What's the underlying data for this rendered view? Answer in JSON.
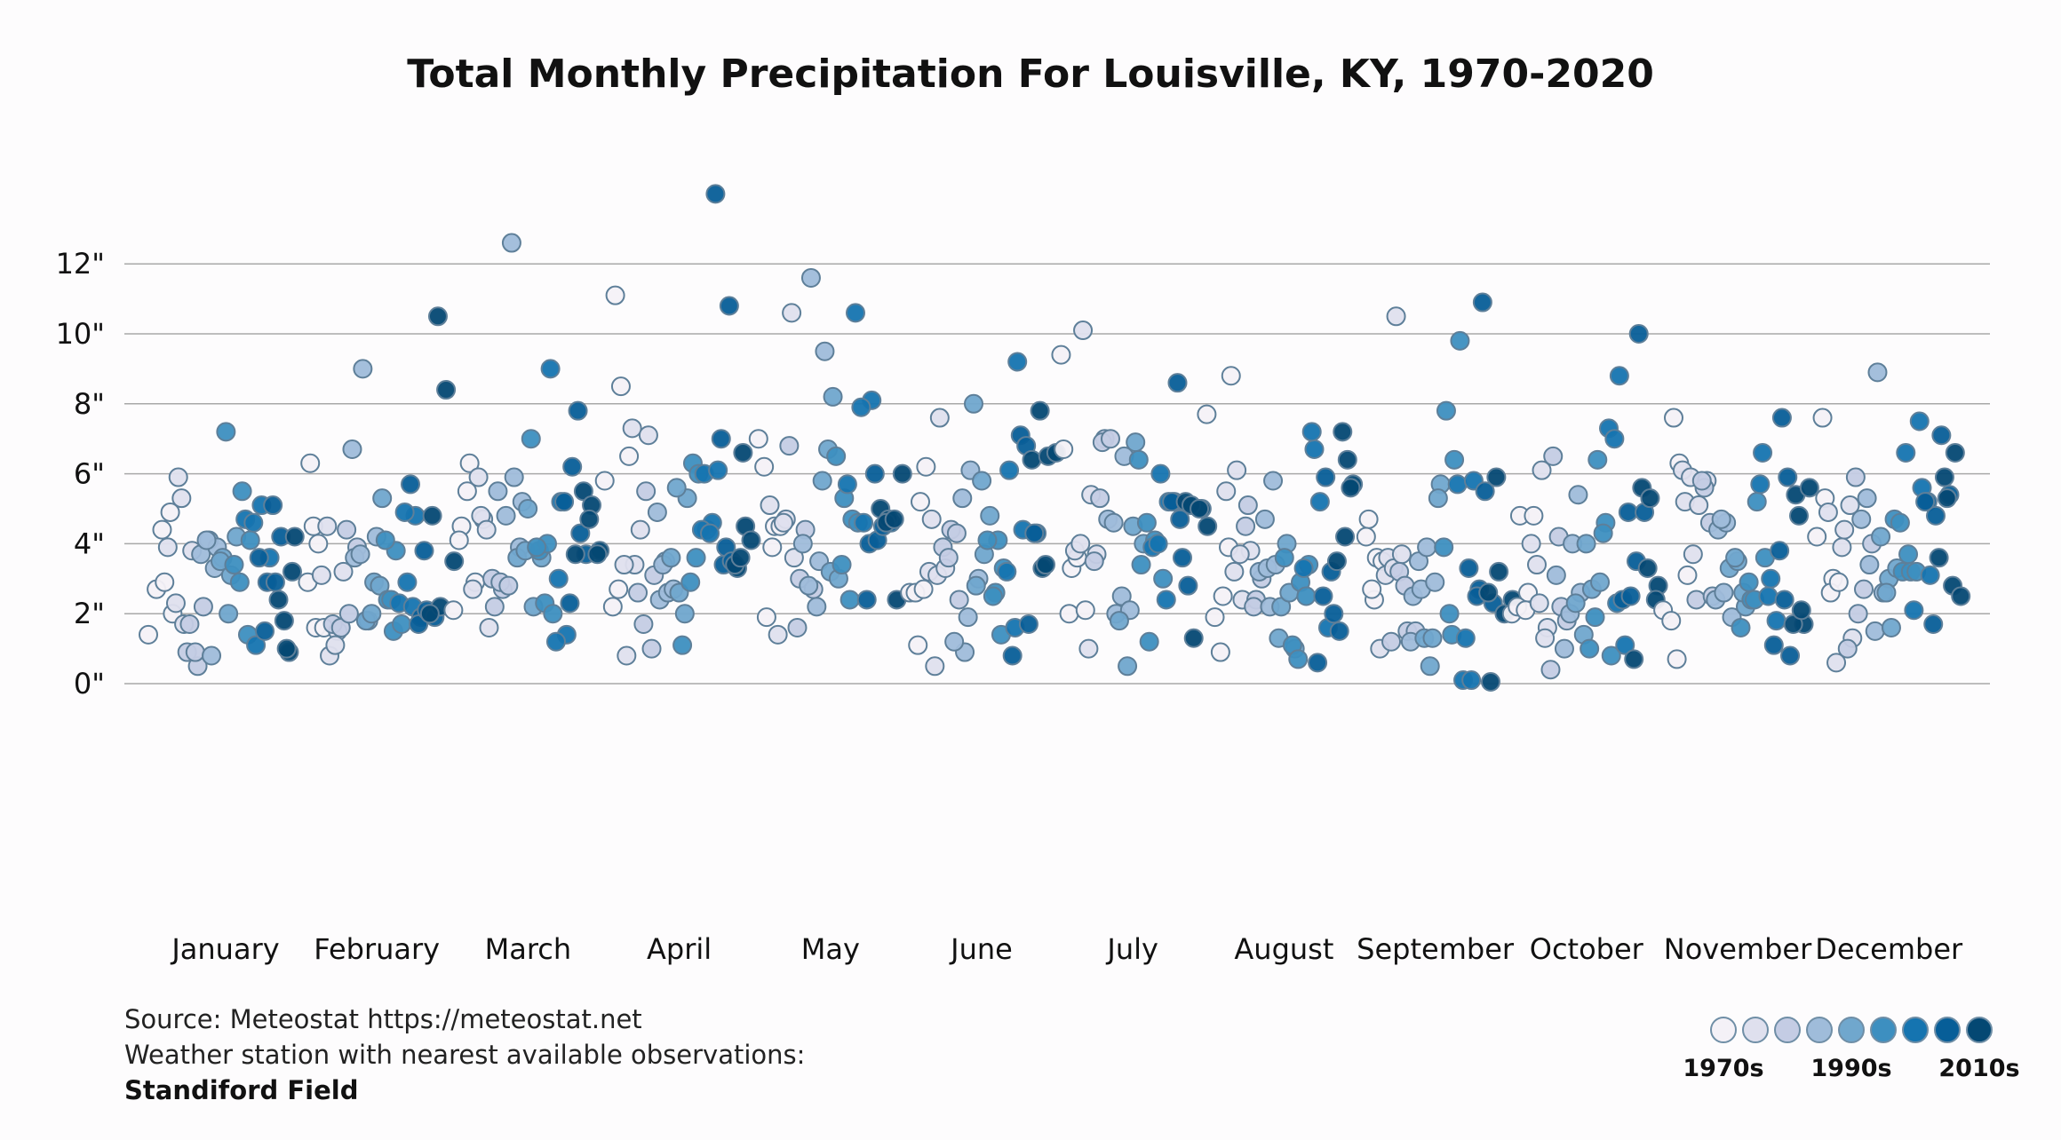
{
  "chart_data": {
    "type": "scatter",
    "title": "Total Monthly Precipitation For Louisville, KY, 1970-2020",
    "ylabel": "",
    "xlabel": "",
    "ylim": [
      0,
      14
    ],
    "y_ticks": [
      "0\"",
      "2\"",
      "4\"",
      "6\"",
      "8\"",
      "10\"",
      "12\""
    ],
    "y_tick_values": [
      0,
      2,
      4,
      6,
      8,
      10,
      12
    ],
    "grid": "horizontal",
    "year_start": 1970,
    "year_end": 2020,
    "categories": [
      "January",
      "February",
      "March",
      "April",
      "May",
      "June",
      "July",
      "August",
      "September",
      "October",
      "November",
      "December"
    ],
    "series": [
      {
        "values": [
          1.4,
          2.7,
          2.9,
          2.0,
          4.4,
          4.9,
          5.9,
          3.9,
          2.3,
          1.7,
          3.8,
          5.3,
          1.7,
          0.5,
          0.9,
          0.9,
          2.2,
          0.8,
          3.7,
          4.1,
          3.9,
          4.1,
          3.3,
          3.6,
          3.1,
          3.5,
          2.0,
          4.2,
          7.2,
          3.4,
          5.5,
          4.1,
          2.9,
          1.4,
          1.1,
          4.7,
          4.6,
          5.1,
          3.6,
          3.6,
          2.9,
          2.9,
          1.5,
          5.1,
          4.2,
          0.9,
          2.4,
          1.0,
          4.2,
          1.8,
          3.2
        ]
      },
      {
        "values": [
          6.3,
          4.0,
          2.9,
          1.6,
          1.6,
          4.5,
          3.1,
          0.8,
          1.5,
          4.5,
          1.1,
          3.2,
          1.7,
          1.6,
          2.0,
          3.9,
          4.4,
          3.6,
          9.0,
          6.7,
          3.7,
          1.8,
          4.2,
          1.8,
          2.9,
          5.3,
          2.0,
          2.8,
          2.4,
          3.8,
          4.1,
          1.5,
          1.7,
          2.4,
          2.3,
          2.9,
          4.8,
          4.9,
          2.2,
          1.9,
          5.7,
          1.7,
          2.1,
          1.9,
          3.8,
          4.8,
          2.2,
          2.0,
          10.5,
          8.4,
          3.5
        ]
      },
      {
        "values": [
          2.1,
          4.5,
          6.3,
          4.1,
          5.5,
          2.9,
          4.7,
          2.7,
          4.8,
          1.6,
          5.9,
          4.4,
          2.2,
          2.7,
          3.0,
          2.9,
          2.8,
          5.5,
          4.8,
          5.9,
          5.2,
          12.6,
          3.9,
          5.0,
          3.6,
          3.8,
          2.2,
          3.6,
          7.0,
          3.8,
          4.0,
          3.9,
          2.3,
          2.0,
          5.2,
          9.0,
          3.0,
          1.4,
          1.2,
          5.2,
          6.2,
          4.3,
          2.3,
          7.8,
          3.7,
          3.7,
          5.5,
          5.1,
          3.8,
          4.7,
          3.7
        ]
      },
      {
        "values": [
          11.1,
          5.8,
          2.2,
          8.5,
          6.5,
          2.7,
          0.8,
          3.4,
          3.4,
          7.3,
          4.4,
          7.1,
          2.6,
          5.5,
          3.1,
          1.7,
          1.0,
          2.4,
          2.6,
          4.9,
          3.5,
          2.7,
          3.4,
          3.6,
          2.6,
          5.3,
          5.6,
          2.0,
          6.3,
          1.1,
          2.9,
          6.0,
          4.4,
          3.6,
          6.0,
          4.6,
          4.4,
          4.3,
          6.1,
          3.9,
          14.0,
          3.4,
          3.5,
          7.0,
          10.8,
          3.3,
          4.5,
          3.4,
          6.6,
          4.1,
          3.6
        ]
      },
      {
        "values": [
          7.0,
          1.9,
          4.5,
          6.2,
          3.9,
          4.5,
          5.1,
          1.4,
          4.7,
          3.6,
          4.6,
          10.6,
          3.0,
          6.8,
          1.6,
          4.4,
          2.7,
          4.0,
          11.6,
          3.5,
          2.8,
          2.2,
          9.5,
          8.2,
          5.8,
          3.2,
          3.0,
          6.7,
          6.5,
          5.3,
          4.7,
          3.4,
          2.4,
          4.6,
          5.7,
          10.6,
          4.6,
          8.1,
          7.9,
          4.0,
          4.1,
          2.4,
          6.0,
          4.5,
          4.6,
          5.0,
          4.7,
          2.4,
          4.6,
          4.7,
          6.0
        ]
      },
      {
        "values": [
          5.2,
          2.6,
          1.1,
          6.2,
          2.6,
          2.7,
          4.7,
          7.6,
          3.2,
          3.1,
          3.3,
          0.5,
          3.9,
          4.4,
          2.4,
          3.6,
          4.3,
          0.9,
          1.2,
          5.3,
          6.1,
          3.0,
          1.9,
          2.8,
          3.7,
          8.0,
          5.8,
          4.8,
          4.1,
          4.1,
          2.6,
          3.3,
          2.5,
          1.4,
          6.1,
          9.2,
          3.2,
          1.6,
          4.4,
          0.8,
          7.1,
          1.7,
          4.3,
          6.8,
          4.3,
          3.3,
          6.4,
          7.8,
          6.5,
          6.6,
          3.4
        ]
      },
      {
        "values": [
          6.7,
          3.3,
          9.4,
          2.0,
          3.6,
          2.1,
          3.8,
          10.1,
          5.4,
          4.0,
          1.0,
          3.7,
          7.0,
          3.5,
          6.9,
          7.0,
          5.3,
          4.7,
          2.0,
          6.5,
          4.6,
          2.5,
          2.1,
          1.8,
          0.5,
          6.9,
          4.0,
          4.5,
          3.4,
          1.2,
          6.4,
          4.6,
          4.1,
          3.0,
          3.9,
          6.0,
          5.2,
          4.0,
          2.4,
          5.2,
          3.6,
          5.2,
          4.7,
          2.8,
          8.6,
          5.2,
          1.3,
          5.0,
          5.1,
          5.0,
          4.5
        ]
      },
      {
        "values": [
          7.7,
          1.9,
          2.5,
          8.8,
          0.9,
          3.9,
          6.1,
          5.5,
          3.2,
          2.4,
          3.8,
          3.7,
          5.1,
          2.4,
          4.5,
          2.2,
          3.0,
          2.2,
          3.2,
          3.3,
          3.4,
          4.7,
          5.8,
          2.2,
          2.6,
          1.3,
          4.0,
          1.0,
          3.6,
          1.1,
          2.9,
          3.4,
          0.7,
          2.5,
          6.7,
          3.3,
          7.2,
          5.2,
          1.6,
          0.6,
          5.9,
          2.0,
          2.5,
          3.2,
          1.5,
          6.4,
          3.5,
          4.2,
          5.7,
          7.2,
          5.6
        ]
      },
      {
        "values": [
          4.7,
          3.6,
          4.2,
          2.4,
          3.5,
          2.7,
          1.0,
          3.6,
          10.5,
          3.1,
          3.3,
          3.7,
          1.2,
          3.2,
          1.5,
          1.5,
          2.8,
          2.5,
          2.7,
          1.2,
          3.5,
          3.9,
          2.9,
          1.3,
          1.3,
          5.7,
          0.5,
          5.3,
          7.8,
          6.4,
          3.9,
          1.4,
          9.8,
          2.0,
          5.7,
          1.3,
          5.8,
          0.1,
          0.1,
          2.7,
          3.3,
          2.5,
          5.5,
          2.3,
          10.9,
          0.05,
          3.2,
          2.6,
          5.9,
          2.0,
          2.4
        ]
      },
      {
        "values": [
          2.0,
          4.8,
          2.6,
          2.2,
          2.1,
          4.8,
          6.1,
          4.0,
          2.3,
          1.6,
          3.4,
          1.3,
          6.5,
          2.2,
          0.4,
          4.2,
          1.8,
          3.1,
          1.0,
          4.0,
          2.6,
          2.0,
          5.4,
          4.0,
          2.3,
          1.4,
          2.7,
          2.9,
          1.0,
          6.4,
          4.6,
          1.9,
          4.3,
          0.8,
          8.8,
          7.3,
          2.3,
          1.1,
          7.0,
          2.4,
          2.5,
          10.0,
          4.9,
          3.5,
          4.9,
          0.7,
          5.6,
          5.3,
          2.8,
          3.3,
          2.4
        ]
      },
      {
        "values": [
          7.6,
          2.1,
          1.8,
          6.3,
          3.1,
          0.7,
          5.2,
          3.7,
          6.1,
          5.9,
          5.1,
          5.8,
          2.4,
          5.6,
          2.5,
          5.8,
          4.6,
          4.4,
          4.6,
          2.4,
          2.6,
          1.9,
          4.7,
          3.3,
          3.5,
          2.2,
          3.6,
          2.6,
          2.4,
          1.6,
          2.9,
          5.2,
          3.6,
          2.4,
          6.6,
          3.0,
          5.7,
          2.5,
          1.8,
          2.4,
          1.1,
          7.6,
          0.8,
          3.8,
          5.9,
          5.4,
          1.7,
          1.7,
          2.1,
          5.6,
          4.8
        ]
      },
      {
        "values": [
          4.2,
          5.3,
          3.0,
          7.6,
          2.6,
          2.9,
          4.9,
          0.6,
          4.4,
          1.3,
          3.9,
          5.1,
          2.0,
          1.0,
          5.9,
          2.7,
          4.0,
          4.7,
          3.4,
          8.9,
          5.3,
          1.5,
          2.6,
          1.6,
          4.2,
          3.0,
          3.3,
          2.6,
          4.7,
          3.2,
          3.2,
          4.6,
          3.7,
          3.2,
          6.6,
          2.1,
          5.6,
          3.1,
          7.5,
          5.2,
          4.8,
          5.2,
          1.7,
          7.1,
          5.4,
          3.6,
          5.3,
          6.6,
          5.9,
          2.8,
          2.5
        ]
      }
    ],
    "color_scale": [
      "#f4f1f7",
      "#dfe0ee",
      "#c4cce4",
      "#9fbcda",
      "#70a7cd",
      "#3d8fc0",
      "#1574b0",
      "#075e98",
      "#044873"
    ],
    "legend": {
      "placement": "bottom-right",
      "labels": [
        "1970s",
        "1990s",
        "2010s"
      ]
    }
  },
  "source": {
    "line1": "Source: Meteostat https://meteostat.net",
    "line2": "Weather station with nearest available observations:",
    "line3": "Standiford Field"
  }
}
